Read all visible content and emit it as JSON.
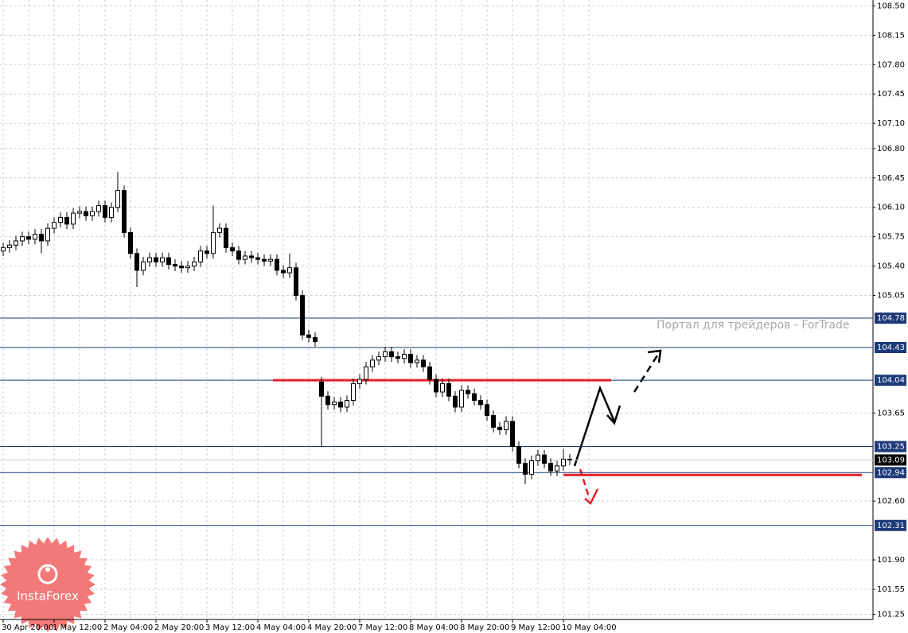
{
  "chart_data": {
    "type": "candlestick",
    "categories": [
      "30 Apr 20:00",
      null,
      null,
      null,
      null,
      null,
      null,
      null,
      "1 May 12:00",
      null,
      null,
      null,
      null,
      null,
      null,
      null,
      "2 May 04:00",
      null,
      null,
      null,
      null,
      null,
      null,
      null,
      "2 May 20:00",
      null,
      null,
      null,
      null,
      null,
      null,
      null,
      "3 May 12:00",
      null,
      null,
      null,
      null,
      null,
      null,
      null,
      "4 May 04:00",
      null,
      null,
      null,
      null,
      null,
      null,
      null,
      "4 May 20:00",
      null,
      null,
      null,
      null,
      null,
      null,
      null,
      "7 May 12:00",
      null,
      null,
      null,
      null,
      null,
      null,
      null,
      "8 May 04:00",
      null,
      null,
      null,
      null,
      null,
      null,
      null,
      "8 May 20:00",
      null,
      null,
      null,
      null,
      null,
      null,
      null,
      "9 May 12:00",
      null,
      null,
      null,
      null,
      null,
      null,
      null,
      "10 May 04:00",
      null
    ],
    "open": [
      105.58,
      105.62,
      105.65,
      105.7,
      105.75,
      105.72,
      105.78,
      105.7,
      105.85,
      105.92,
      105.98,
      105.9,
      106.03,
      106.05,
      106.0,
      106.05,
      106.12,
      105.98,
      106.1,
      106.3,
      105.8,
      105.55,
      105.35,
      105.45,
      105.5,
      105.45,
      105.5,
      105.42,
      105.4,
      105.38,
      105.4,
      105.45,
      105.58,
      105.55,
      105.8,
      105.85,
      105.62,
      105.58,
      105.48,
      105.52,
      105.5,
      105.48,
      105.46,
      105.48,
      105.35,
      105.32,
      105.38,
      105.05,
      104.58,
      104.55,
      104.02,
      103.85,
      103.75,
      103.78,
      103.72,
      103.8,
      104.0,
      104.05,
      104.2,
      104.28,
      104.32,
      104.38,
      104.32,
      104.3,
      104.35,
      104.25,
      104.28,
      104.2,
      104.05,
      103.9,
      104.0,
      103.85,
      103.72,
      103.92,
      103.88,
      103.8,
      103.75,
      103.62,
      103.48,
      103.45,
      103.55,
      103.25,
      103.05,
      102.92,
      103.08,
      103.15,
      103.05,
      102.96,
      103.02,
      103.1
    ],
    "high": [
      105.68,
      105.71,
      105.76,
      105.81,
      105.81,
      105.84,
      105.84,
      105.91,
      105.98,
      106.04,
      106.04,
      106.09,
      106.11,
      106.11,
      106.11,
      106.18,
      106.18,
      106.16,
      106.52,
      106.36,
      105.86,
      105.61,
      105.51,
      105.56,
      105.56,
      105.56,
      105.56,
      105.48,
      105.46,
      105.46,
      105.51,
      105.64,
      105.64,
      106.12,
      105.91,
      105.91,
      105.68,
      105.64,
      105.58,
      105.58,
      105.56,
      105.54,
      105.54,
      105.54,
      105.41,
      105.55,
      105.44,
      105.11,
      104.64,
      104.61,
      104.08,
      103.91,
      103.84,
      103.84,
      103.86,
      104.06,
      104.11,
      104.26,
      104.34,
      104.38,
      104.44,
      104.44,
      104.38,
      104.41,
      104.41,
      104.34,
      104.34,
      104.26,
      104.11,
      104.06,
      104.06,
      103.91,
      103.98,
      103.98,
      103.94,
      103.86,
      103.81,
      103.68,
      103.54,
      103.61,
      103.61,
      103.31,
      103.11,
      103.14,
      103.21,
      103.21,
      103.11,
      103.08,
      103.22,
      103.16
    ],
    "low": [
      105.52,
      105.56,
      105.59,
      105.64,
      105.66,
      105.66,
      105.55,
      105.64,
      105.79,
      105.86,
      105.84,
      105.84,
      105.97,
      105.94,
      105.94,
      105.99,
      105.92,
      105.92,
      106.04,
      105.74,
      105.49,
      105.15,
      105.29,
      105.39,
      105.39,
      105.39,
      105.36,
      105.34,
      105.32,
      105.32,
      105.34,
      105.39,
      105.49,
      105.49,
      105.74,
      105.56,
      105.52,
      105.42,
      105.42,
      105.44,
      105.42,
      105.4,
      105.4,
      105.29,
      105.26,
      105.26,
      104.99,
      104.52,
      104.49,
      104.44,
      103.25,
      103.69,
      103.69,
      103.66,
      103.66,
      103.74,
      103.94,
      103.99,
      104.14,
      104.22,
      104.26,
      104.26,
      104.24,
      104.24,
      104.19,
      104.19,
      104.14,
      103.99,
      103.84,
      103.84,
      103.79,
      103.66,
      103.66,
      103.82,
      103.74,
      103.69,
      103.56,
      103.42,
      103.39,
      103.39,
      103.19,
      102.99,
      102.8,
      102.86,
      103.02,
      102.99,
      102.9,
      102.9,
      102.96,
      103.03
    ],
    "close": [
      105.62,
      105.65,
      105.7,
      105.75,
      105.72,
      105.78,
      105.7,
      105.85,
      105.92,
      105.98,
      105.9,
      106.03,
      106.05,
      106.0,
      106.05,
      106.12,
      105.98,
      106.1,
      106.3,
      105.8,
      105.55,
      105.35,
      105.45,
      105.5,
      105.45,
      105.5,
      105.42,
      105.4,
      105.38,
      105.4,
      105.45,
      105.58,
      105.55,
      105.8,
      105.85,
      105.62,
      105.58,
      105.48,
      105.52,
      105.5,
      105.48,
      105.46,
      105.48,
      105.35,
      105.32,
      105.38,
      105.05,
      104.58,
      104.55,
      104.5,
      103.85,
      103.75,
      103.78,
      103.72,
      103.8,
      104.0,
      104.05,
      104.2,
      104.28,
      104.32,
      104.38,
      104.32,
      104.3,
      104.35,
      104.25,
      104.28,
      104.2,
      104.05,
      103.9,
      104.0,
      103.85,
      103.72,
      103.92,
      103.88,
      103.8,
      103.75,
      103.62,
      103.48,
      103.45,
      103.55,
      103.25,
      103.05,
      102.92,
      103.08,
      103.15,
      103.05,
      102.96,
      103.02,
      103.1,
      103.09
    ],
    "ylim": [
      101.19,
      108.57
    ],
    "yticks": [
      {
        "value": 108.5,
        "label": "108.50"
      },
      108.15,
      {
        "value": 107.8,
        "label": "107.80"
      },
      107.45,
      {
        "value": 107.1,
        "label": "107.10"
      },
      {
        "value": 106.8,
        "label": "106.80"
      },
      106.45,
      {
        "value": 106.1,
        "label": "106.10"
      },
      105.75,
      {
        "value": 105.4,
        "label": "105.40"
      },
      105.05,
      103.65,
      {
        "value": 102.6,
        "label": "102.60"
      },
      {
        "value": 101.9,
        "label": "101.90"
      },
      101.55,
      101.25
    ],
    "grid": true,
    "levels": [
      104.78,
      104.43,
      104.04,
      103.25,
      102.94,
      102.31
    ],
    "highlight_levels": [
      104.04,
      102.94
    ],
    "current_price": 103.09,
    "colors": {
      "up": "#ffffff",
      "down": "#000000",
      "level": "#1c3a78",
      "highlight": "#e3202a"
    },
    "watermark": "Портал для трейдеров - ForTrade",
    "logo_text": "InstaForex"
  }
}
